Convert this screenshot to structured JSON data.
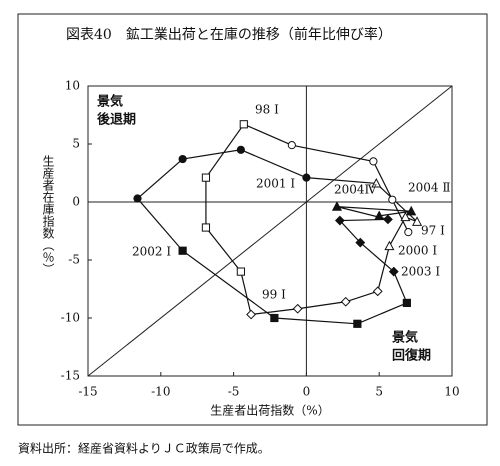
{
  "chart_data": {
    "type": "line",
    "title": "図表40　鉱工業出荷と在庫の推移（前年比伸び率）",
    "x_label": "生産者出荷指数（%）",
    "y_label": "生産者在庫指数（％）",
    "source": "資料出所：経産省資料よりＪＣ政策局で作成。",
    "xlim": [
      -15,
      10
    ],
    "ylim": [
      -15,
      10
    ],
    "xticks": [
      -15,
      -10,
      -5,
      0,
      5,
      10
    ],
    "yticks": [
      10,
      5,
      0,
      -5,
      -10,
      -15
    ],
    "color": "#111111",
    "x": [
      7.0,
      5.9,
      4.6,
      -1.0,
      -4.3,
      -6.9,
      -6.9,
      -4.5,
      -3.8,
      -0.6,
      2.7,
      4.9,
      5.7,
      6.8,
      7.6,
      4.8,
      0.0,
      -4.5,
      -8.5,
      -11.6,
      -8.5,
      -2.2,
      3.5,
      6.9,
      6.0,
      3.7,
      2.3,
      5.6,
      2.1,
      7.2,
      5.0
    ],
    "values": [
      -2.6,
      0.2,
      3.5,
      4.9,
      6.7,
      2.1,
      -2.2,
      -6.0,
      -9.7,
      -9.2,
      -8.6,
      -7.7,
      -3.8,
      -1.3,
      -1.7,
      1.6,
      2.1,
      4.5,
      3.7,
      0.3,
      -4.2,
      -10.0,
      -10.5,
      -8.7,
      -6.0,
      -3.5,
      -1.6,
      -1.5,
      -0.4,
      -0.8,
      -1.2
    ],
    "markers": [
      "open-circle",
      "open-circle",
      "open-circle",
      "open-circle",
      "open-square",
      "open-square",
      "open-square",
      "open-square",
      "open-diamond",
      "open-diamond",
      "open-diamond",
      "open-diamond",
      "open-triangle",
      "open-triangle",
      "open-triangle",
      "open-triangle",
      "filled-circle",
      "filled-circle",
      "filled-circle",
      "filled-circle",
      "filled-square",
      "filled-square",
      "filled-square",
      "filled-square",
      "filled-diamond",
      "filled-diamond",
      "filled-diamond",
      "filled-diamond",
      "filled-triangle",
      "filled-triangle",
      "filled-triangle"
    ],
    "annotations": [
      "98 Ⅰ",
      "2001 Ⅰ",
      "2004Ⅳ",
      "2004 Ⅱ",
      "97 Ⅰ",
      "2000 Ⅰ",
      "2003 Ⅰ",
      "2002 Ⅰ",
      "99 Ⅰ"
    ],
    "quadrant_labels": [
      [
        "景気",
        "後退期"
      ],
      [
        "景気",
        "回復期"
      ]
    ],
    "diagonal": true
  }
}
